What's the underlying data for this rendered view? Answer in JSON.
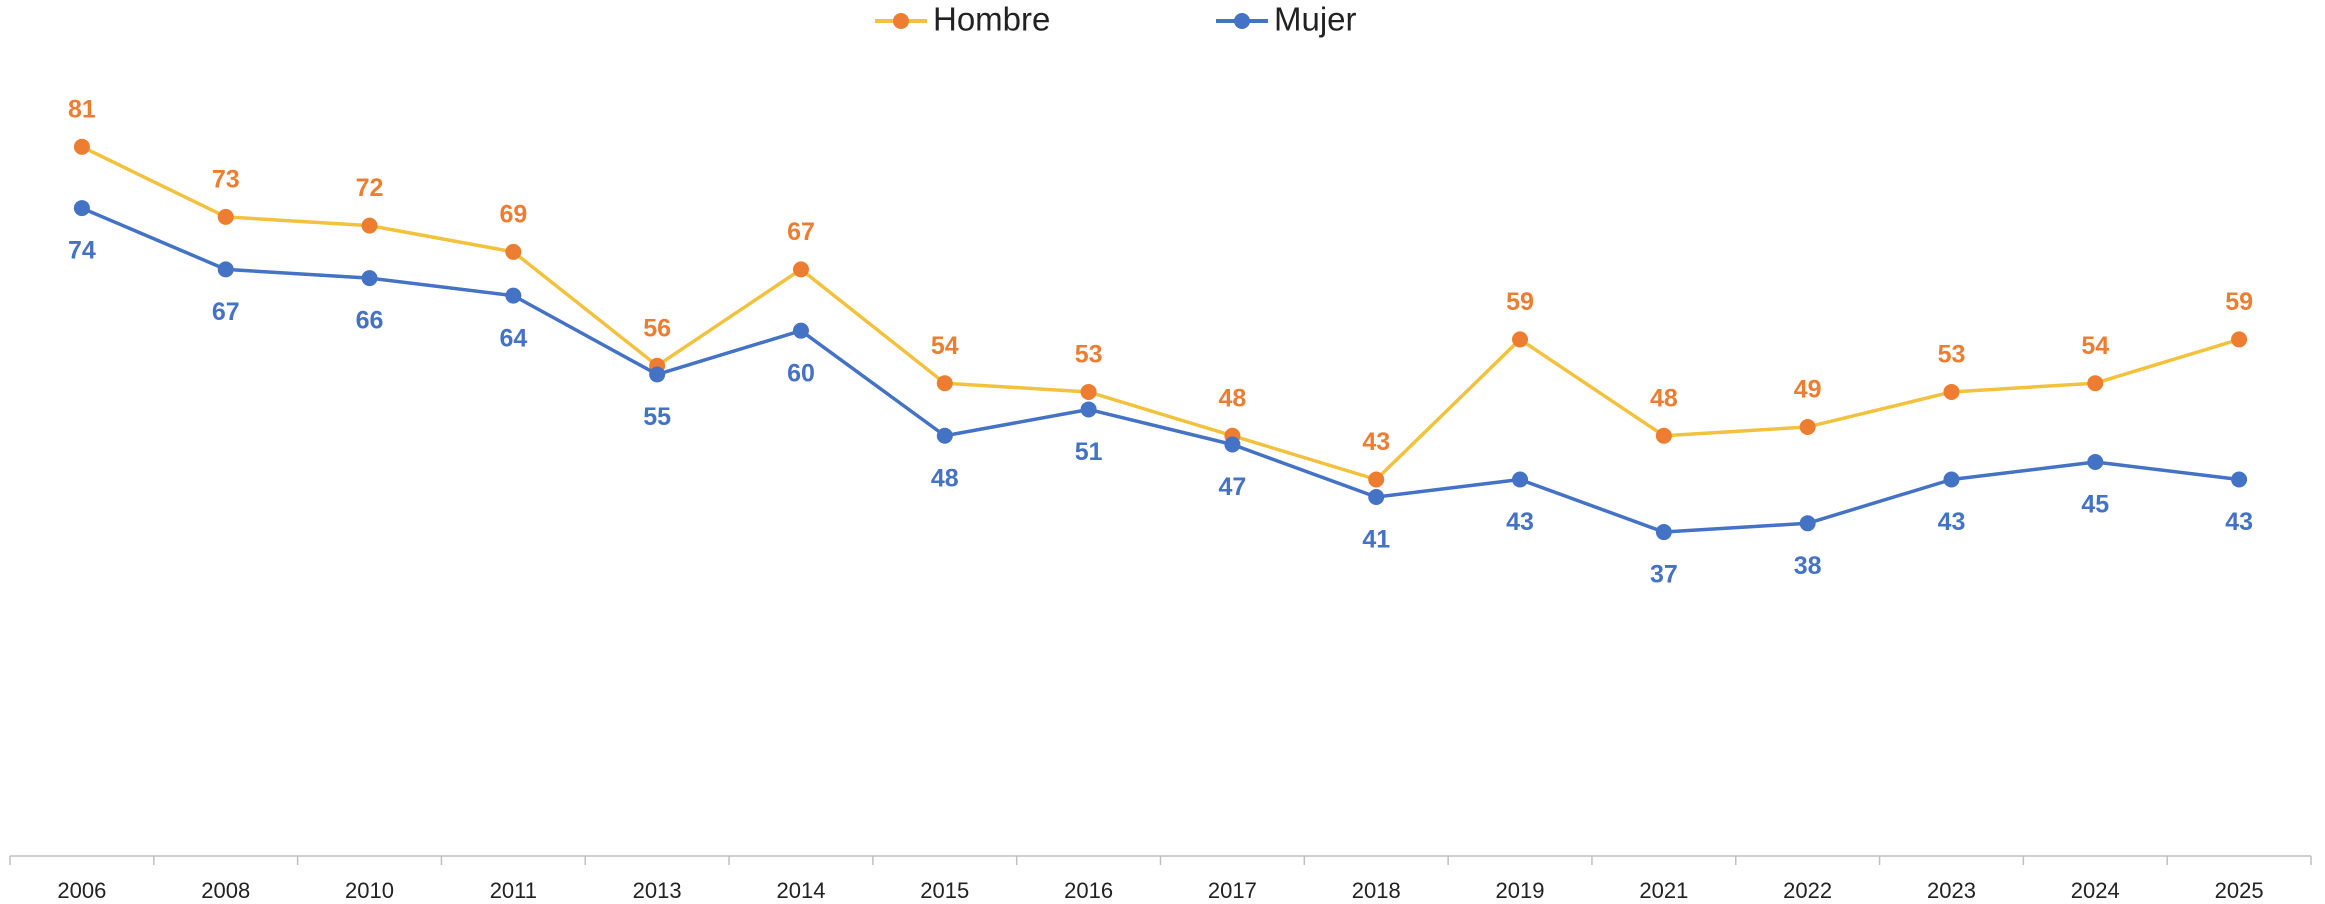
{
  "chart_data": {
    "type": "line",
    "categories": [
      "2006",
      "2008",
      "2010",
      "2011",
      "2013",
      "2014",
      "2015",
      "2016",
      "2017",
      "2018",
      "2019",
      "2021",
      "2022",
      "2023",
      "2024",
      "2025"
    ],
    "series": [
      {
        "name": "Hombre",
        "color": "#F2C23E",
        "marker_color": "#ED7D31",
        "label_position": "above",
        "values": [
          81,
          73,
          72,
          69,
          56,
          67,
          54,
          53,
          48,
          43,
          59,
          48,
          49,
          53,
          54,
          59
        ]
      },
      {
        "name": "Mujer",
        "color": "#4472C4",
        "marker_color": "#4472C4",
        "label_position": "below",
        "values": [
          74,
          67,
          66,
          64,
          55,
          60,
          48,
          51,
          47,
          41,
          43,
          37,
          38,
          43,
          45,
          43
        ]
      }
    ],
    "ylim": [
      0,
      90
    ],
    "legend": "top"
  }
}
